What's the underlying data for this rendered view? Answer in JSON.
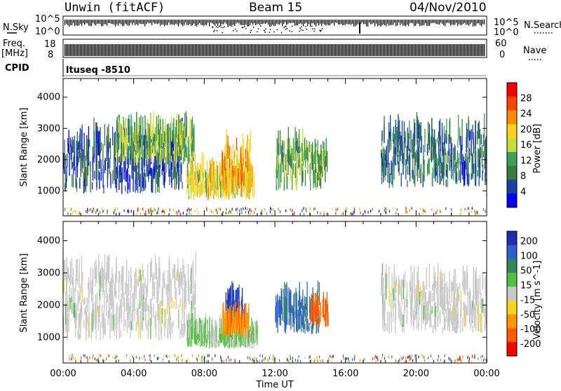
{
  "header": {
    "station": "Unwin (fitACF)",
    "beam": "Beam 15",
    "date": "04/Nov/2010"
  },
  "summary_panels": {
    "nsky_label": "N.Sky",
    "freq_label": "Freq.",
    "freq_unit": "[MHz]",
    "cpid_label": "CPID",
    "nsearch_label": "N.Search",
    "nave_label": "Nave",
    "noise_tick_top": "10^5",
    "noise_tick_bottom": "10^0",
    "freq_tick_top": "18",
    "freq_tick_bottom": "8",
    "nave_tick_top": "60",
    "nave_tick_bottom": "0",
    "cpid_value": "ltuseq -8510"
  },
  "colors": {
    "power_scale": [
      "#0000ff",
      "#1a3fa8",
      "#3a7a3a",
      "#3aa05a",
      "#c8dc3c",
      "#ffd21e",
      "#ff8c00",
      "#ff4400",
      "#ff0000"
    ],
    "velocity_scale": [
      "#1c2db4",
      "#2f5fcc",
      "#2f8a5a",
      "#4ec23c",
      "#c8c8c8",
      "#ffd21e",
      "#ff9600",
      "#ff5a00",
      "#ff0000"
    ]
  },
  "chart_data": [
    {
      "type": "heatmap",
      "title": "Power",
      "ylabel": "Slant Range [km]",
      "ylim": [
        200,
        4600
      ],
      "yticks": [
        "1000",
        "2000",
        "3000",
        "4000"
      ],
      "colorbar": {
        "label": "Power [dB]",
        "ticks": [
          "4",
          "8",
          "12",
          "16",
          "20",
          "24",
          "28"
        ],
        "range": [
          0,
          32
        ]
      },
      "regions": [
        {
          "t_start": 0.0,
          "t_end": 6.8,
          "r_min": 900,
          "r_max": 2600,
          "value": 6
        },
        {
          "t_start": 3.0,
          "t_end": 7.5,
          "r_min": 1800,
          "r_max": 2800,
          "value": 14
        },
        {
          "t_start": 7.0,
          "t_end": 10.8,
          "r_min": 700,
          "r_max": 1500,
          "value": 18
        },
        {
          "t_start": 9.0,
          "t_end": 10.6,
          "r_min": 800,
          "r_max": 2300,
          "value": 22
        },
        {
          "t_start": 12.0,
          "t_end": 15.0,
          "r_min": 1000,
          "r_max": 2300,
          "value": 12
        },
        {
          "t_start": 18.0,
          "t_end": 24.0,
          "r_min": 1100,
          "r_max": 2700,
          "value": 8
        }
      ]
    },
    {
      "type": "heatmap",
      "title": "Velocity",
      "xlabel": "Time UT",
      "ylabel": "Slant Range [km]",
      "ylim": [
        200,
        4600
      ],
      "yticks": [
        "1000",
        "2000",
        "3000",
        "4000"
      ],
      "xticks": [
        "00:00",
        "04:00",
        "08:00",
        "12:00",
        "16:00",
        "20:00",
        "00:00"
      ],
      "xlim": [
        0,
        24
      ],
      "colorbar": {
        "label": "Velocity [m s^-1]",
        "ticks": [
          "200",
          "100",
          "50",
          "15",
          "-15",
          "-50",
          "-100",
          "-200"
        ],
        "range": [
          -250,
          250
        ]
      },
      "regions": [
        {
          "t_start": 0.0,
          "t_end": 7.5,
          "r_min": 900,
          "r_max": 2900,
          "value": 0
        },
        {
          "t_start": 7.0,
          "t_end": 11.0,
          "r_min": 650,
          "r_max": 1000,
          "value": 30
        },
        {
          "t_start": 9.2,
          "t_end": 10.3,
          "r_min": 1300,
          "r_max": 2000,
          "value": 200
        },
        {
          "t_start": 9.0,
          "t_end": 10.5,
          "r_min": 1000,
          "r_max": 1400,
          "value": -120
        },
        {
          "t_start": 12.0,
          "t_end": 14.5,
          "r_min": 1100,
          "r_max": 2000,
          "value": 150
        },
        {
          "t_start": 14.0,
          "t_end": 15.0,
          "r_min": 1300,
          "r_max": 1800,
          "value": -150
        },
        {
          "t_start": 18.0,
          "t_end": 24.0,
          "r_min": 1100,
          "r_max": 2600,
          "value": 0
        }
      ]
    }
  ]
}
